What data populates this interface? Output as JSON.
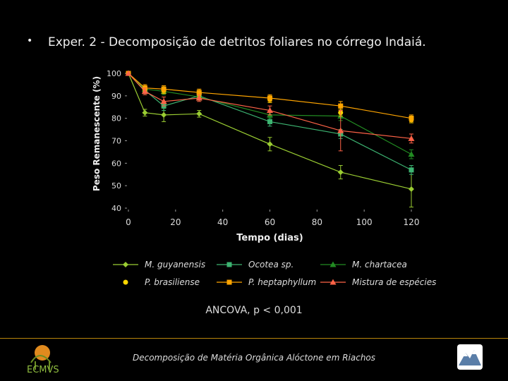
{
  "slide": {
    "bullet": "•",
    "title": "Exper. 2 - Decomposição de detritos foliares no córrego Indaiá.",
    "stat_text": "ANCOVA, p < 0,001",
    "footer": "Decomposição de Matéria Orgânica Alóctone em Riachos"
  },
  "colors": {
    "background": "#000000",
    "rule": "#b8860b"
  },
  "chart_data": {
    "type": "line",
    "title": "",
    "xlabel": "Tempo (dias)",
    "ylabel": "Peso Remanescente (%)",
    "xlim": [
      0,
      120
    ],
    "ylim": [
      40,
      100
    ],
    "xticks": [
      0,
      20,
      40,
      60,
      80,
      100,
      120
    ],
    "yticks": [
      40,
      50,
      60,
      70,
      80,
      90,
      100
    ],
    "grid": false,
    "legend_position": "bottom",
    "series": [
      {
        "name": "M. guyanensis",
        "color": "#9acd32",
        "marker": "diamond",
        "line": true,
        "x": [
          0,
          7,
          15,
          30,
          60,
          90,
          120
        ],
        "y": [
          100,
          82.5,
          81.5,
          82,
          68.5,
          56,
          48.5
        ],
        "err": [
          0,
          1.5,
          3,
          1.5,
          3,
          3,
          8
        ]
      },
      {
        "name": "Ocotea sp.",
        "color": "#3cb371",
        "marker": "square",
        "line": true,
        "x": [
          0,
          7,
          15,
          30,
          60,
          90,
          120
        ],
        "y": [
          100,
          92.5,
          85.5,
          90,
          78.5,
          73,
          57
        ],
        "err": [
          0,
          1.5,
          2,
          1.5,
          2,
          2,
          2
        ]
      },
      {
        "name": "M. chartacea",
        "color": "#228b22",
        "marker": "triangle",
        "line": true,
        "x": [
          0,
          7,
          15,
          30,
          60,
          90,
          120
        ],
        "y": [
          100,
          93,
          92,
          89.5,
          81.5,
          81,
          64
        ],
        "err": [
          0,
          1.5,
          1.5,
          1.5,
          1.5,
          2,
          2
        ]
      },
      {
        "name": "P. brasiliense",
        "color": "#ffd700",
        "marker": "circle",
        "line": false,
        "x": [
          0,
          7,
          15,
          30,
          60,
          90,
          120
        ],
        "y": [
          100,
          93,
          92.5,
          91,
          88.5,
          82.5,
          79.5
        ],
        "err": [
          0,
          1.5,
          1.5,
          1.5,
          1.5,
          1.5,
          1.5
        ]
      },
      {
        "name": "P. heptaphyllum",
        "color": "#ffa500",
        "marker": "square",
        "line": true,
        "x": [
          0,
          7,
          15,
          30,
          60,
          90,
          120
        ],
        "y": [
          100,
          93.5,
          93,
          91.5,
          89,
          85.5,
          80
        ],
        "err": [
          0,
          1.5,
          1.5,
          1.5,
          1.5,
          2,
          1.5
        ]
      },
      {
        "name": "Mistura de espécies",
        "color": "#ff6347",
        "marker": "triangle",
        "line": true,
        "x": [
          0,
          7,
          15,
          30,
          60,
          90,
          120
        ],
        "y": [
          100,
          92,
          87.5,
          89,
          83.5,
          74.5,
          71
        ],
        "err": [
          0,
          1.5,
          2,
          1.5,
          2,
          9,
          2
        ]
      }
    ]
  }
}
